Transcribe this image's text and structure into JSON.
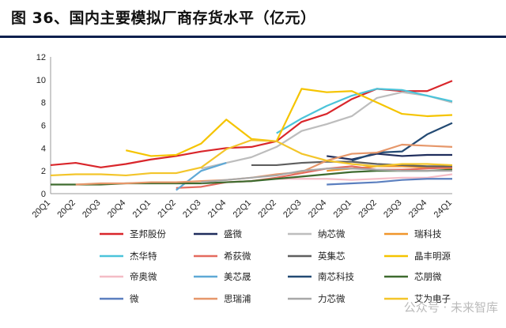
{
  "header": {
    "title": "图 36、国内主要模拟厂商存货水平（亿元）"
  },
  "watermark": "公众号 · 未来智库",
  "chart_data": {
    "type": "line",
    "title": "图 36、国内主要模拟厂商存货水平（亿元）",
    "xlabel": "",
    "ylabel": "",
    "ylim": [
      0,
      12
    ],
    "yticks": [
      0,
      2,
      4,
      6,
      8,
      10,
      12
    ],
    "grid": false,
    "legend_position": "bottom",
    "categories": [
      "20Q1",
      "20Q2",
      "20Q3",
      "20Q4",
      "21Q1",
      "21Q2",
      "21Q3",
      "21Q4",
      "22Q1",
      "22Q2",
      "22Q3",
      "22Q4",
      "23Q1",
      "23Q2",
      "23Q3",
      "23Q4",
      "24Q1"
    ],
    "series": [
      {
        "name": "圣邦股份",
        "color": "#d9262b",
        "values": [
          2.5,
          2.7,
          2.3,
          2.6,
          3.0,
          3.3,
          3.7,
          4.0,
          4.1,
          4.6,
          6.3,
          7.0,
          8.3,
          9.2,
          9.0,
          9.0,
          9.9
        ]
      },
      {
        "name": "盛微",
        "color": "#1f2d5c",
        "values": [
          null,
          null,
          null,
          null,
          null,
          null,
          null,
          null,
          null,
          null,
          null,
          3.3,
          3.0,
          3.5,
          3.3,
          3.4,
          3.4
        ]
      },
      {
        "name": "纳芯微",
        "color": "#bdbdbd",
        "values": [
          null,
          null,
          null,
          null,
          null,
          null,
          2.2,
          2.7,
          3.2,
          4.1,
          5.5,
          6.1,
          6.8,
          8.4,
          8.9,
          8.6,
          8.0
        ]
      },
      {
        "name": "瑞科技",
        "color": "#f0962b",
        "values": [
          null,
          null,
          null,
          null,
          null,
          null,
          null,
          null,
          null,
          null,
          null,
          2.0,
          2.2,
          2.4,
          2.4,
          2.3,
          2.2
        ]
      },
      {
        "name": "杰华特",
        "color": "#4bc4da",
        "values": [
          null,
          null,
          null,
          null,
          null,
          null,
          null,
          null,
          null,
          5.3,
          6.6,
          7.7,
          8.6,
          9.2,
          9.1,
          8.6,
          8.1
        ]
      },
      {
        "name": "希荻微",
        "color": "#e46a5e",
        "values": [
          null,
          null,
          null,
          null,
          null,
          0.5,
          0.6,
          1.0,
          1.1,
          1.4,
          1.8,
          2.2,
          2.4,
          2.1,
          2.1,
          2.2,
          2.3
        ]
      },
      {
        "name": "英集芯",
        "color": "#5f5f5f",
        "values": [
          null,
          null,
          null,
          null,
          null,
          null,
          null,
          null,
          2.5,
          2.5,
          2.7,
          2.8,
          2.8,
          2.6,
          2.5,
          2.4,
          2.4
        ]
      },
      {
        "name": "晶丰明源",
        "color": "#f5c400",
        "values": [
          null,
          null,
          null,
          3.8,
          3.3,
          3.4,
          4.4,
          6.5,
          4.8,
          4.6,
          9.2,
          8.9,
          9.0,
          8.0,
          7.0,
          6.8,
          6.9
        ]
      },
      {
        "name": "帝奥微",
        "color": "#f4bcc6",
        "values": [
          null,
          null,
          null,
          null,
          null,
          null,
          null,
          null,
          null,
          1.3,
          1.3,
          1.3,
          1.2,
          1.3,
          1.4,
          1.4,
          1.7
        ]
      },
      {
        "name": "美芯晟",
        "color": "#5fa9d6",
        "values": [
          null,
          null,
          null,
          null,
          null,
          0.3,
          2.0,
          2.7,
          null,
          null,
          null,
          null,
          null,
          null,
          null,
          null,
          null
        ]
      },
      {
        "name": "南芯科技",
        "color": "#234a73",
        "values": [
          null,
          null,
          null,
          null,
          null,
          null,
          null,
          null,
          null,
          null,
          null,
          null,
          2.9,
          3.6,
          3.7,
          5.2,
          6.2
        ]
      },
      {
        "name": "芯朋微",
        "color": "#3e6b2f",
        "values": [
          0.8,
          0.8,
          0.8,
          0.9,
          0.9,
          0.9,
          0.9,
          1.0,
          1.1,
          1.3,
          1.5,
          1.7,
          1.9,
          2.0,
          2.0,
          2.0,
          2.1
        ]
      },
      {
        "name": "微",
        "color": "#5b7fbf",
        "values": [
          null,
          null,
          null,
          null,
          null,
          null,
          null,
          null,
          null,
          null,
          null,
          0.8,
          0.9,
          1.0,
          1.2,
          1.3,
          1.3
        ]
      },
      {
        "name": "思瑞浦",
        "color": "#e6976a",
        "values": [
          null,
          0.8,
          0.9,
          0.9,
          1.0,
          1.0,
          1.1,
          1.2,
          1.4,
          1.7,
          1.9,
          2.9,
          3.5,
          3.6,
          4.3,
          4.2,
          4.1
        ]
      },
      {
        "name": "力芯微",
        "color": "#a8a8a8",
        "values": [
          null,
          null,
          null,
          null,
          null,
          null,
          1.0,
          1.2,
          1.4,
          1.6,
          2.0,
          2.2,
          2.2,
          2.1,
          2.0,
          2.0,
          2.0
        ]
      },
      {
        "name": "艾为电子",
        "color": "#f3c52a",
        "values": [
          1.6,
          1.7,
          1.7,
          1.6,
          1.8,
          1.8,
          2.3,
          3.9,
          4.7,
          4.6,
          3.5,
          2.9,
          2.6,
          2.4,
          2.6,
          2.6,
          2.5
        ]
      }
    ],
    "legend_rows": [
      [
        "圣邦股份",
        "盛微",
        "纳芯微",
        "瑞科技"
      ],
      [
        "杰华特",
        "希荻微",
        "英集芯",
        "晶丰明源"
      ],
      [
        "帝奥微",
        "美芯晟",
        "南芯科技",
        "芯朋微"
      ],
      [
        "微",
        "思瑞浦",
        "力芯微",
        "艾为电子"
      ]
    ]
  }
}
